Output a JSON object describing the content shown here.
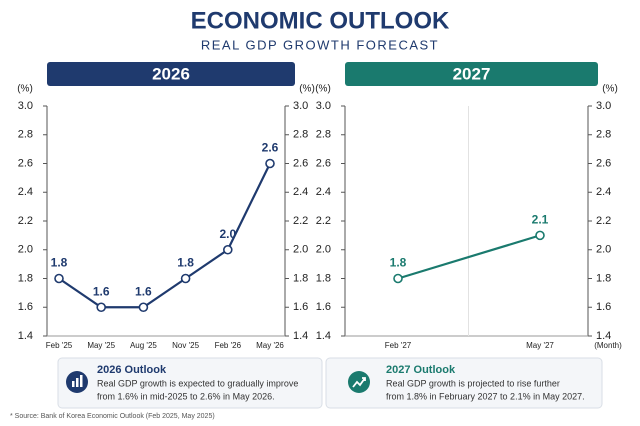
{
  "header": {
    "title": "ECONOMIC OUTLOOK",
    "subtitle": "REAL GDP GROWTH FORECAST"
  },
  "chart_data": [
    {
      "type": "line",
      "title": "2026",
      "y_label": "(%)",
      "color": "#1f3a6e",
      "categories": [
        "Feb '25",
        "May '25",
        "Aug '25",
        "Nov '25",
        "Feb '26",
        "May '26"
      ],
      "values": [
        1.8,
        1.6,
        1.6,
        1.8,
        2.0,
        2.6
      ],
      "value_labels": [
        "1.8",
        "1.6",
        "1.6",
        "1.8",
        "2.0",
        "2.6"
      ],
      "ylim": [
        1.4,
        3.0
      ],
      "yticks": [
        1.4,
        1.6,
        1.8,
        {
          "value": 2.0,
          "label": "2.0"
        },
        2.2,
        2.4,
        2.6,
        2.8,
        {
          "value": 3.0,
          "label": "3.0"
        }
      ]
    },
    {
      "type": "line",
      "title": "2027",
      "y_label": "(%)",
      "x_label": "(Month)",
      "color": "#1a7a6e",
      "categories": [
        "Feb '27",
        "May '27"
      ],
      "values": [
        1.8,
        2.1
      ],
      "value_labels": [
        "1.8",
        "2.1"
      ],
      "ylim": [
        1.4,
        3.0
      ],
      "yticks": [
        1.4,
        1.6,
        1.8,
        {
          "value": 2.0,
          "label": "2.0"
        },
        2.2,
        2.4,
        2.6,
        2.8,
        {
          "value": 3.0,
          "label": "3.0"
        }
      ]
    }
  ],
  "notes": [
    {
      "title": "2026 Outlook",
      "lines": [
        "Real GDP growth is expected to gradually improve",
        "from 1.6% in mid-2025 to 2.6% in May 2026."
      ]
    },
    {
      "title": "2027 Outlook",
      "lines": [
        "Real GDP growth is projected to rise further",
        "from 1.8% in February 2027 to 2.1% in May 2027."
      ]
    }
  ],
  "source": "* Source: Bank of Korea Economic Outlook (Feb 2025, May 2025)"
}
